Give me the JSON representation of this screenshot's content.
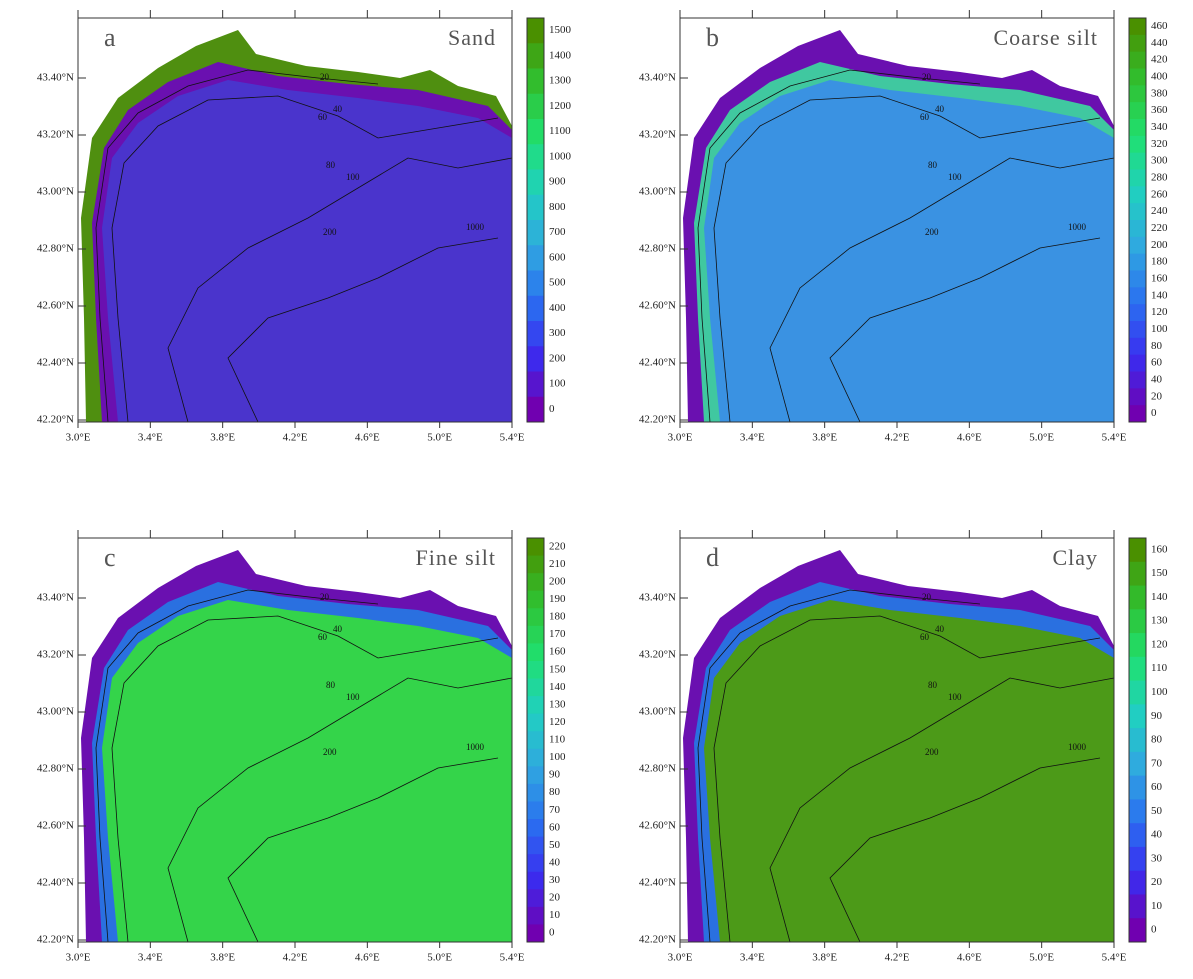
{
  "lat_ticks": [
    "43.40°N",
    "43.20°N",
    "43.00°N",
    "42.80°N",
    "42.60°N",
    "42.40°N",
    "42.20°N"
  ],
  "lon_ticks": [
    "3.0°E",
    "3.4°E",
    "3.8°E",
    "4.2°E",
    "4.6°E",
    "5.0°E",
    "5.4°E"
  ],
  "contour_labels": [
    "20",
    "40",
    "60",
    "80",
    "100",
    "200",
    "1000"
  ],
  "panels": [
    {
      "letter": "a",
      "title": "Sand",
      "colorbar_ticks": [
        "1500",
        "1400",
        "1300",
        "1200",
        "1100",
        "1000",
        "900",
        "800",
        "700",
        "600",
        "500",
        "400",
        "300",
        "200",
        "100",
        "0"
      ]
    },
    {
      "letter": "b",
      "title": "Coarse silt",
      "colorbar_ticks": [
        "460",
        "440",
        "420",
        "400",
        "380",
        "360",
        "340",
        "320",
        "300",
        "280",
        "260",
        "240",
        "220",
        "200",
        "180",
        "160",
        "140",
        "120",
        "100",
        "80",
        "60",
        "40",
        "20",
        "0"
      ]
    },
    {
      "letter": "c",
      "title": "Fine silt",
      "colorbar_ticks": [
        "220",
        "210",
        "200",
        "190",
        "180",
        "170",
        "160",
        "150",
        "140",
        "130",
        "120",
        "110",
        "100",
        "90",
        "80",
        "70",
        "60",
        "50",
        "40",
        "30",
        "20",
        "10",
        "0"
      ]
    },
    {
      "letter": "d",
      "title": "Clay",
      "colorbar_ticks": [
        "160",
        "150",
        "140",
        "130",
        "120",
        "110",
        "100",
        "90",
        "80",
        "70",
        "60",
        "50",
        "40",
        "30",
        "20",
        "10",
        "0"
      ]
    }
  ]
}
